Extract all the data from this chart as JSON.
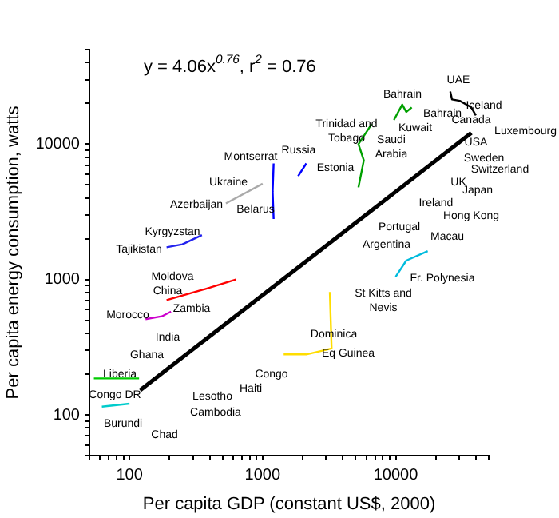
{
  "chart_data": {
    "type": "line",
    "xlabel": "Per capita GDP (constant US$, 2000)",
    "ylabel": "Per capita energy consumption, watts",
    "log": "xy",
    "xlim": [
      50,
      50000
    ],
    "ylim": [
      50,
      50000
    ],
    "xticks": [
      {
        "value": 50,
        "label": null
      },
      {
        "value": 60,
        "label": null
      },
      {
        "value": 70,
        "label": null
      },
      {
        "value": 80,
        "label": null
      },
      {
        "value": 90,
        "label": null
      },
      100,
      {
        "value": 200,
        "label": null
      },
      {
        "value": 300,
        "label": null
      },
      {
        "value": 400,
        "label": null
      },
      {
        "value": 500,
        "label": null
      },
      {
        "value": 600,
        "label": null
      },
      {
        "value": 700,
        "label": null
      },
      {
        "value": 800,
        "label": null
      },
      {
        "value": 900,
        "label": null
      },
      1000,
      {
        "value": 2000,
        "label": null
      },
      {
        "value": 3000,
        "label": null
      },
      {
        "value": 4000,
        "label": null
      },
      {
        "value": 5000,
        "label": null
      },
      {
        "value": 6000,
        "label": null
      },
      {
        "value": 7000,
        "label": null
      },
      {
        "value": 8000,
        "label": null
      },
      {
        "value": 9000,
        "label": null
      },
      10000,
      {
        "value": 20000,
        "label": null
      },
      {
        "value": 30000,
        "label": null
      },
      {
        "value": 40000,
        "label": null
      },
      {
        "value": 50000,
        "label": null
      }
    ],
    "yticks": [
      {
        "value": 50,
        "label": null
      },
      {
        "value": 60,
        "label": null
      },
      {
        "value": 70,
        "label": null
      },
      {
        "value": 80,
        "label": null
      },
      {
        "value": 90,
        "label": null
      },
      100,
      {
        "value": 200,
        "label": null
      },
      {
        "value": 300,
        "label": null
      },
      {
        "value": 400,
        "label": null
      },
      {
        "value": 500,
        "label": null
      },
      {
        "value": 600,
        "label": null
      },
      {
        "value": 700,
        "label": null
      },
      {
        "value": 800,
        "label": null
      },
      {
        "value": 900,
        "label": null
      },
      1000,
      {
        "value": 2000,
        "label": null
      },
      {
        "value": 3000,
        "label": null
      },
      {
        "value": 4000,
        "label": null
      },
      {
        "value": 5000,
        "label": null
      },
      {
        "value": 6000,
        "label": null
      },
      {
        "value": 7000,
        "label": null
      },
      {
        "value": 8000,
        "label": null
      },
      {
        "value": 9000,
        "label": null
      },
      10000,
      {
        "value": 20000,
        "label": null
      },
      {
        "value": 30000,
        "label": null
      },
      {
        "value": 40000,
        "label": null
      },
      {
        "value": 50000,
        "label": null
      }
    ],
    "grid": false,
    "legend": false,
    "marker": "none",
    "line_style": "solid",
    "series": [
      {
        "color": "#00a000",
        "x": [
          5250,
          5760,
          5250,
          6600
        ],
        "values": [
          4790,
          7590,
          10000,
          14100
        ]
      },
      {
        "color": "#00a000",
        "x": [
          9700,
          11200,
          12000,
          13200
        ],
        "values": [
          15100,
          19600,
          17300,
          18700
        ]
      },
      {
        "color": "#000000",
        "x": [
          25700,
          26500,
          30300,
          37000,
          40000
        ],
        "values": [
          24500,
          21400,
          20900,
          18700,
          16300
        ]
      },
      {
        "color": "#0000ff",
        "x": [
          1210,
          1190,
          1210
        ],
        "values": [
          7200,
          4450,
          2800
        ]
      },
      {
        "color": "#0000ff",
        "x": [
          1850,
          2130
        ],
        "values": [
          5800,
          7200
        ]
      },
      {
        "color": "#aaaaaa",
        "x": [
          530,
          1000
        ],
        "values": [
          3650,
          5100
        ]
      },
      {
        "color": "#ffdd00",
        "x": [
          1440,
          2130,
          3300,
          3200
        ],
        "values": [
          280,
          280,
          310,
          810
        ]
      },
      {
        "color": "#00cc00",
        "x": [
          54,
          118
        ],
        "values": [
          186,
          186
        ]
      },
      {
        "color": "#ff0000",
        "x": [
          190,
          400,
          630
        ],
        "values": [
          705,
          870,
          1000
        ]
      },
      {
        "color": "#00bbdd",
        "x": [
          10000,
          12000,
          17400
        ],
        "values": [
          1050,
          1380,
          1620
        ]
      },
      {
        "color": "#2222ee",
        "x": [
          190,
          250,
          350
        ],
        "values": [
          1730,
          1820,
          2130
        ]
      },
      {
        "color": "#cc00cc",
        "x": [
          132,
          175,
          205
        ],
        "values": [
          510,
          535,
          580
        ]
      },
      {
        "color": "#00cccc",
        "x": [
          62,
          100
        ],
        "values": [
          115,
          121
        ]
      },
      {
        "color": "#000000",
        "x": [
          120,
          37000
        ],
        "values": [
          152,
          12100
        ]
      }
    ],
    "annotations": [
      "y = 4.06x$^{0.76}$, r$^{2}$ = 0.76",
      "UAE",
      "Bahrain",
      "Bahrain",
      "Iceland",
      "Canada",
      "Trinidad and\nTobago",
      "Kuwait",
      "Saudi\nArabia",
      "Luxembourg",
      "USA",
      "Montserrat",
      "Russia",
      "Estonia",
      "Sweden",
      "Switzerland",
      "Ukraine",
      "UK",
      "Japan",
      "Azerbaijan",
      "Belarus",
      "Ireland",
      "Hong Kong",
      "Kyrgyzstan",
      "Portugal",
      "Macau",
      "Tajikistan",
      "Argentina",
      "Moldova",
      "Fr. Polynesia",
      "China",
      "St Kitts and\nNevis",
      "Morocco",
      "Zambia",
      "India",
      "Dominica",
      "Ghana",
      "Eq Guinea",
      "Liberia",
      "Congo",
      "Haiti",
      "Congo DR",
      "Lesotho",
      "Cambodia",
      "Burundi",
      "Chad"
    ]
  }
}
